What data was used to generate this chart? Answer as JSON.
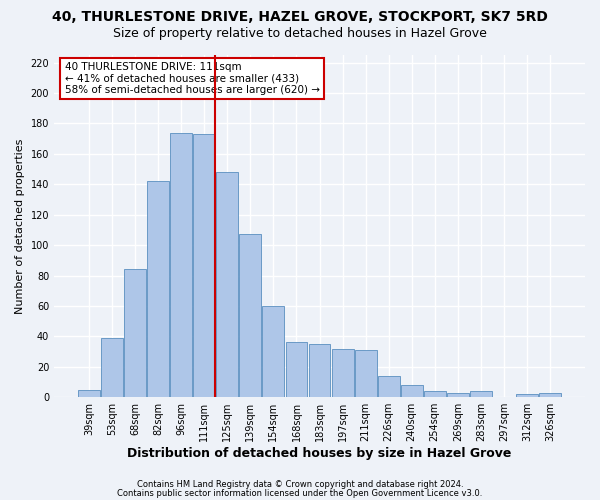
{
  "title": "40, THURLESTONE DRIVE, HAZEL GROVE, STOCKPORT, SK7 5RD",
  "subtitle": "Size of property relative to detached houses in Hazel Grove",
  "xlabel": "Distribution of detached houses by size in Hazel Grove",
  "ylabel": "Number of detached properties",
  "footnote1": "Contains HM Land Registry data © Crown copyright and database right 2024.",
  "footnote2": "Contains public sector information licensed under the Open Government Licence v3.0.",
  "categories": [
    "39sqm",
    "53sqm",
    "68sqm",
    "82sqm",
    "96sqm",
    "111sqm",
    "125sqm",
    "139sqm",
    "154sqm",
    "168sqm",
    "183sqm",
    "197sqm",
    "211sqm",
    "226sqm",
    "240sqm",
    "254sqm",
    "269sqm",
    "283sqm",
    "297sqm",
    "312sqm",
    "326sqm"
  ],
  "values": [
    5,
    39,
    84,
    142,
    174,
    173,
    148,
    107,
    60,
    36,
    35,
    32,
    31,
    14,
    8,
    4,
    3,
    4,
    0,
    2,
    3
  ],
  "bar_color": "#aec6e8",
  "bar_edge_color": "#5a8fc0",
  "highlight_index": 5,
  "highlight_line_color": "#cc0000",
  "annotation_text": "40 THURLESTONE DRIVE: 111sqm\n← 41% of detached houses are smaller (433)\n58% of semi-detached houses are larger (620) →",
  "annotation_box_color": "#ffffff",
  "annotation_box_edge_color": "#cc0000",
  "ylim": [
    0,
    225
  ],
  "yticks": [
    0,
    20,
    40,
    60,
    80,
    100,
    120,
    140,
    160,
    180,
    200,
    220
  ],
  "background_color": "#eef2f8",
  "grid_color": "#ffffff",
  "title_fontsize": 10,
  "subtitle_fontsize": 9,
  "xlabel_fontsize": 9,
  "ylabel_fontsize": 8,
  "tick_fontsize": 7,
  "footnote_fontsize": 6,
  "annotation_fontsize": 7.5
}
